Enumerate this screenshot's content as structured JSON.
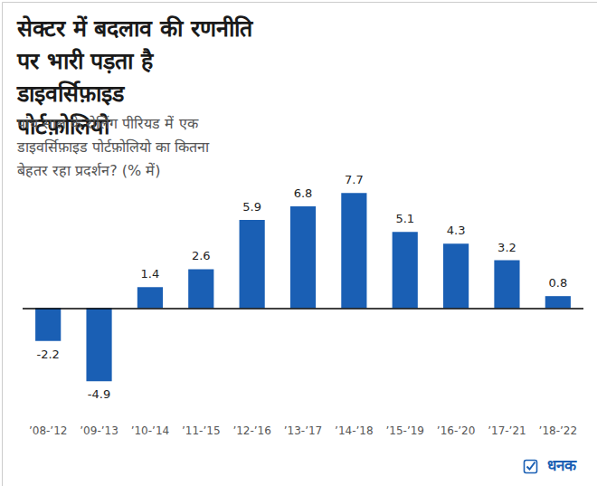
{
  "chart_data": {
    "type": "bar",
    "title": "सेक्टर में बदलाव की रणनीति पर भारी पड़ता है डाइवर्सिफ़ाइड पोर्टफ़ोलियो",
    "subtitle": "पांच साल के रोलिंग पीरियड में एक डाइवर्सिफ़ाइड पोर्टफ़ोलियो का कितना बेहतर रहा प्रदर्शन? (% में)",
    "source": "धनक",
    "categories": [
      "’08-’12",
      "’09-’13",
      "’10-’14",
      "’11-’15",
      "’12-’16",
      "’13-’17",
      "’14-’18",
      "’15-’19",
      "’16-’20",
      "’17-’21",
      "’18-’22"
    ],
    "values": [
      -2.2,
      -4.9,
      1.4,
      2.6,
      5.9,
      6.8,
      7.7,
      5.1,
      4.3,
      3.2,
      0.8
    ],
    "color": "#1a5fb4",
    "ylim": [
      -7,
      8.5
    ],
    "grid": false,
    "data_labels": true,
    "tick_labels": "x"
  }
}
